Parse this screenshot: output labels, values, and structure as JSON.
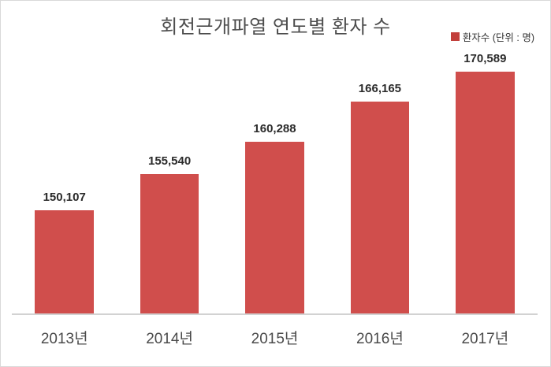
{
  "frame": {
    "background": "#ffffff",
    "border_color": "#d9d9d9"
  },
  "chart_data": {
    "type": "bar",
    "title": "회전근개파열 연도별 환자 수",
    "legend": {
      "label": "환자수 (단위 : 명)",
      "position": "top-right",
      "marker_color": "#c2403c"
    },
    "categories": [
      "2013년",
      "2014년",
      "2015년",
      "2016년",
      "2017년"
    ],
    "series": [
      {
        "name": "환자수",
        "values": [
          150107,
          155540,
          160288,
          166165,
          170589
        ]
      }
    ],
    "value_labels": [
      "150,107",
      "155,540",
      "160,288",
      "166,165",
      "170,589"
    ],
    "xlabel": "",
    "ylabel": "",
    "ylim": [
      135000,
      174000
    ],
    "grid": false,
    "yaxis_visible": false,
    "bar_color": "#d04e4c",
    "axis_line_color": "#d2d2d2",
    "title_color": "#4d4d4d",
    "value_label_color": "#2b2b2b",
    "xtick_color": "#4a4a4a"
  }
}
